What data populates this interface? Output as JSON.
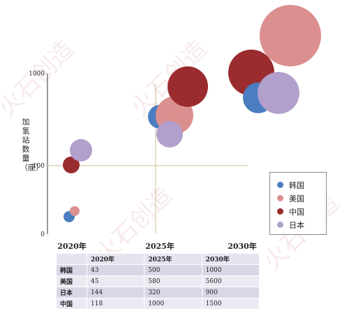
{
  "chart_data": {
    "type": "bubble",
    "title": "",
    "ylabel": "加氢站数量（座）",
    "yscale": "log",
    "yticks": [
      "0",
      "100",
      "1000"
    ],
    "xticks": [
      "2020年",
      "2025年",
      "2030年"
    ],
    "legend_position": "right",
    "series": [
      {
        "name": "韩国",
        "color": "#4a7ec0",
        "points": [
          {
            "x": "2020年",
            "y": 43
          },
          {
            "x": "2025年",
            "y": 500
          },
          {
            "x": "2030年",
            "y": 1000
          }
        ]
      },
      {
        "name": "美国",
        "color": "#dc8f8f",
        "points": [
          {
            "x": "2020年",
            "y": 45
          },
          {
            "x": "2025年",
            "y": 580
          },
          {
            "x": "2030年",
            "y": 5600
          }
        ]
      },
      {
        "name": "中国",
        "color": "#9a2b2e",
        "points": [
          {
            "x": "2020年",
            "y": 118
          },
          {
            "x": "2025年",
            "y": 1000
          },
          {
            "x": "2030年",
            "y": 1500
          }
        ]
      },
      {
        "name": "日本",
        "color": "#b19fcc",
        "points": [
          {
            "x": "2020年",
            "y": 144
          },
          {
            "x": "2025年",
            "y": 320
          },
          {
            "x": "2030年",
            "y": 900
          }
        ]
      }
    ],
    "table": {
      "columns": [
        "",
        "2020年",
        "2025年",
        "2030年"
      ],
      "rows": [
        {
          "label": "韩国",
          "values": [
            "43",
            "500",
            "1000"
          ]
        },
        {
          "label": "美国",
          "values": [
            "45",
            "580",
            "5600"
          ]
        },
        {
          "label": "日本",
          "values": [
            "144",
            "320",
            "900"
          ]
        },
        {
          "label": "中国",
          "values": [
            "118",
            "1000",
            "1500"
          ]
        }
      ]
    }
  },
  "watermark": "火石创造",
  "colors": {
    "axis": "#333333",
    "crosshair": "#c8c29a"
  }
}
